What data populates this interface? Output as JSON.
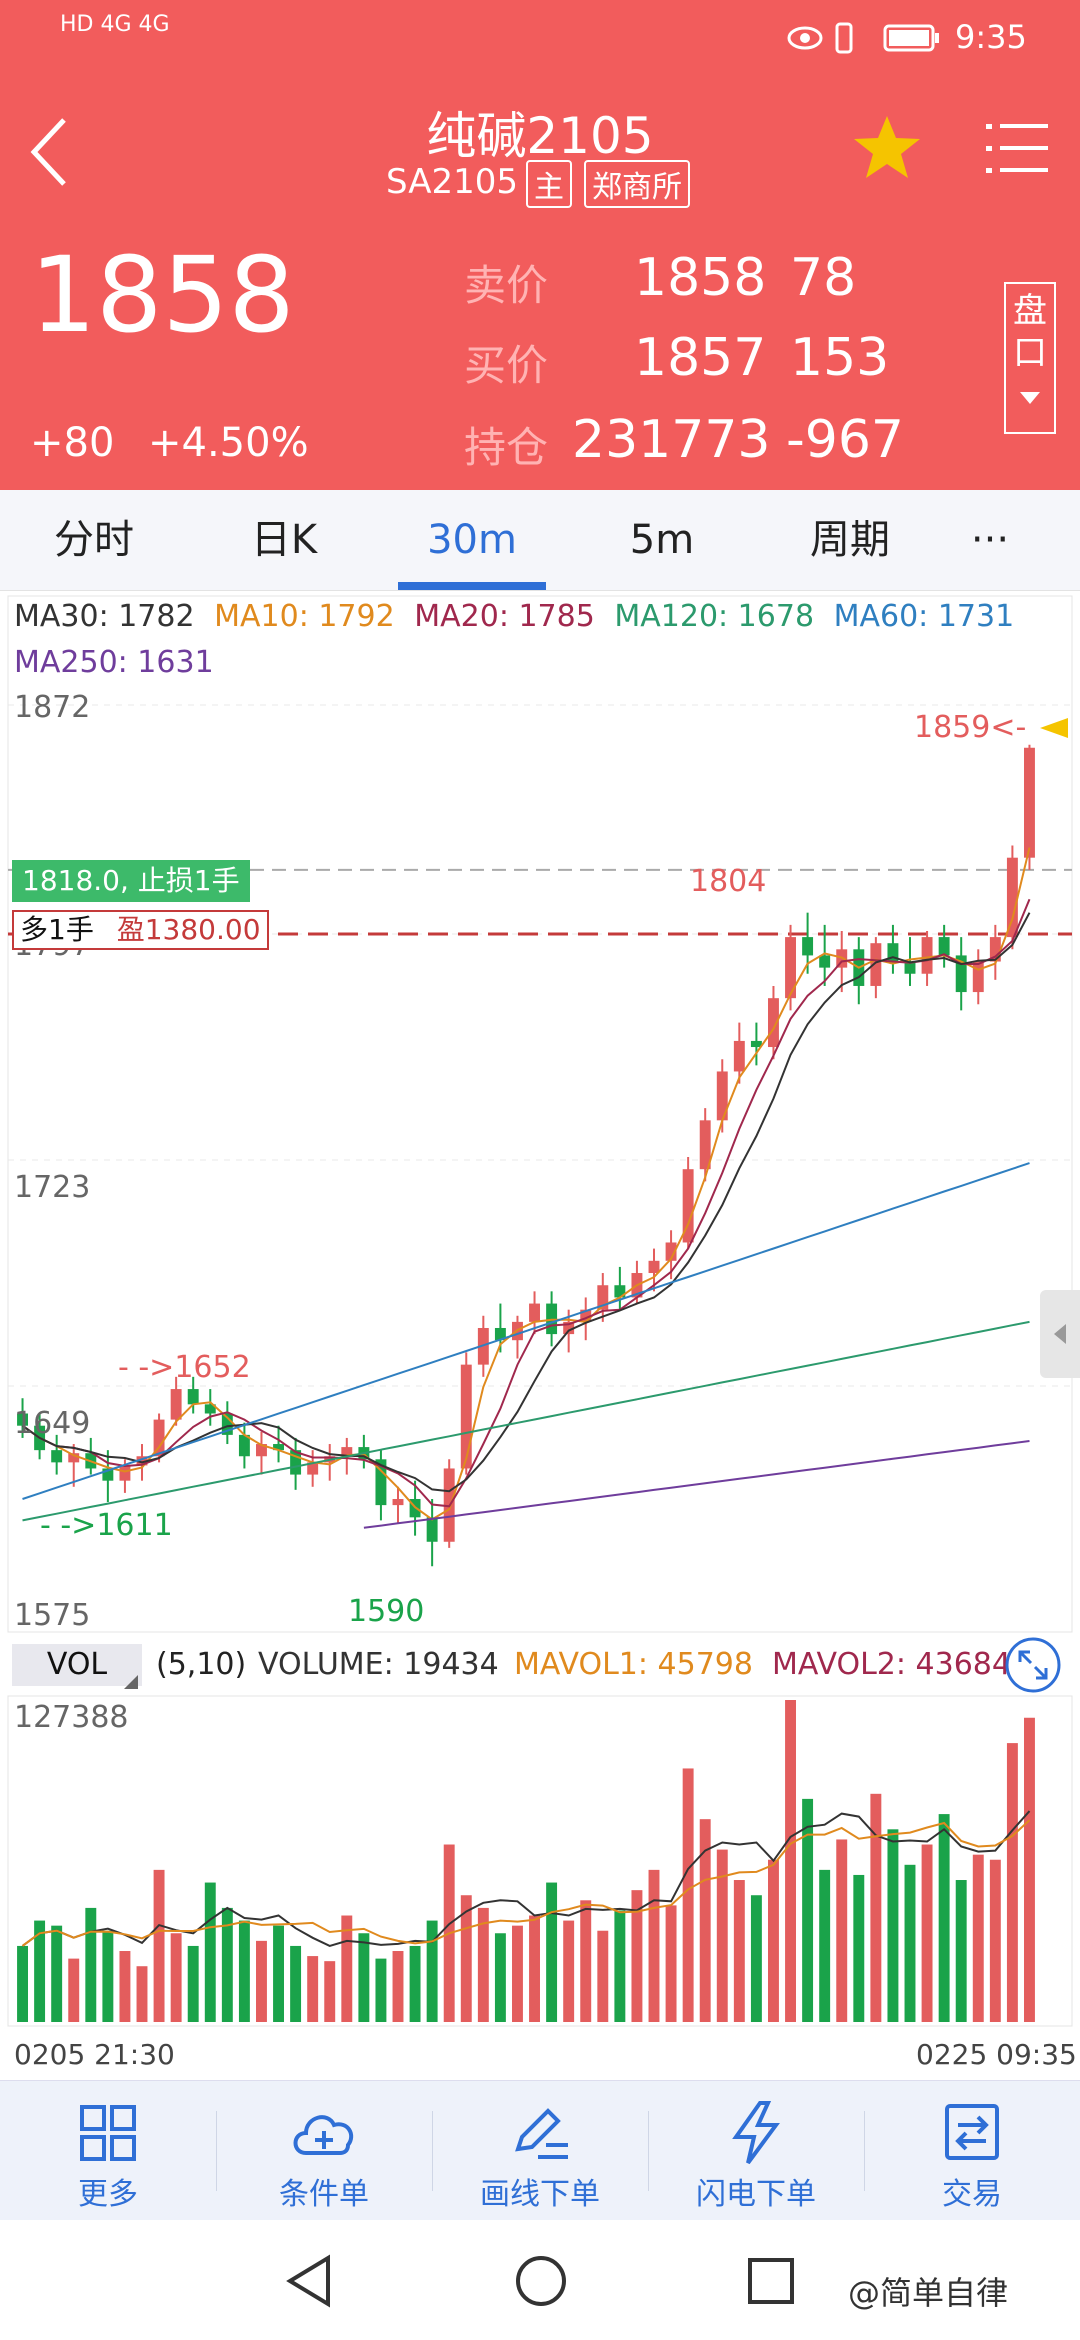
{
  "status_bar": {
    "net_left": "HD 4G 4G",
    "time": "9:35"
  },
  "header": {
    "title": "纯碱2105",
    "code": "SA2105",
    "main_badge": "主",
    "exchange_badge": "郑商所",
    "last_price": "1858",
    "change": "+80",
    "change_pct": "+4.50%",
    "ask_label": "卖价",
    "ask_price": "1858",
    "ask_vol": "78",
    "bid_label": "买价",
    "bid_price": "1857",
    "bid_vol": "153",
    "oi_label": "持仓",
    "oi_value": "231773",
    "oi_change": "-967",
    "pankou_label": "盘口"
  },
  "tabs": [
    {
      "label": "分时"
    },
    {
      "label": "日K"
    },
    {
      "label": "30m"
    },
    {
      "label": "5m"
    },
    {
      "label": "周期"
    },
    {
      "label": "···"
    }
  ],
  "active_tab": "30m",
  "ma_legend": [
    {
      "label": "MA30: 1782",
      "color": "#333333"
    },
    {
      "label": "MA10: 1792",
      "color": "#e08a1e"
    },
    {
      "label": "MA20: 1785",
      "color": "#a0284d"
    },
    {
      "label": "MA120: 1678",
      "color": "#2c9a6d"
    },
    {
      "label": "MA60: 1731",
      "color": "#2f7fc0"
    },
    {
      "label": "MA250: 1631",
      "color": "#6f3d9c"
    }
  ],
  "y_labels": {
    "top": "1872",
    "mid_high": "1797",
    "mid": "1723",
    "low_mid": "1649",
    "bottom": "1575"
  },
  "annotations": {
    "last_marker": "1859<-",
    "high_label": "1804",
    "stop_loss": "1818.0, 止损1手",
    "position": "多1手",
    "profit": "盈1380.00",
    "peak_left": "- ->1652",
    "low_left": "- ->1611",
    "low_label": "1590"
  },
  "chart_data": {
    "type": "candlestick",
    "ylim": [
      1575,
      1872
    ],
    "price_range_note": "",
    "candles": [
      [
        1640,
        1645,
        1632,
        1636
      ],
      [
        1636,
        1640,
        1625,
        1628
      ],
      [
        1628,
        1633,
        1620,
        1624
      ],
      [
        1624,
        1630,
        1616,
        1627
      ],
      [
        1627,
        1632,
        1620,
        1622
      ],
      [
        1622,
        1628,
        1611,
        1618
      ],
      [
        1618,
        1625,
        1614,
        1623
      ],
      [
        1623,
        1630,
        1618,
        1626
      ],
      [
        1626,
        1640,
        1624,
        1638
      ],
      [
        1638,
        1652,
        1636,
        1648
      ],
      [
        1648,
        1652,
        1640,
        1643
      ],
      [
        1643,
        1648,
        1636,
        1640
      ],
      [
        1640,
        1644,
        1630,
        1633
      ],
      [
        1633,
        1637,
        1622,
        1626
      ],
      [
        1626,
        1634,
        1620,
        1630
      ],
      [
        1630,
        1636,
        1624,
        1628
      ],
      [
        1628,
        1632,
        1615,
        1620
      ],
      [
        1620,
        1628,
        1616,
        1624
      ],
      [
        1624,
        1630,
        1618,
        1626
      ],
      [
        1626,
        1632,
        1620,
        1629
      ],
      [
        1629,
        1633,
        1622,
        1625
      ],
      [
        1625,
        1628,
        1605,
        1610
      ],
      [
        1610,
        1616,
        1604,
        1612
      ],
      [
        1612,
        1618,
        1600,
        1606
      ],
      [
        1606,
        1612,
        1590,
        1598
      ],
      [
        1598,
        1625,
        1596,
        1622
      ],
      [
        1622,
        1660,
        1620,
        1656
      ],
      [
        1656,
        1672,
        1652,
        1668
      ],
      [
        1668,
        1676,
        1660,
        1664
      ],
      [
        1664,
        1672,
        1658,
        1670
      ],
      [
        1670,
        1680,
        1666,
        1676
      ],
      [
        1676,
        1680,
        1662,
        1666
      ],
      [
        1666,
        1674,
        1660,
        1670
      ],
      [
        1670,
        1678,
        1664,
        1674
      ],
      [
        1674,
        1686,
        1670,
        1682
      ],
      [
        1682,
        1688,
        1674,
        1678
      ],
      [
        1678,
        1690,
        1676,
        1686
      ],
      [
        1686,
        1694,
        1680,
        1690
      ],
      [
        1690,
        1700,
        1684,
        1696
      ],
      [
        1696,
        1724,
        1694,
        1720
      ],
      [
        1720,
        1740,
        1716,
        1736
      ],
      [
        1736,
        1756,
        1732,
        1752
      ],
      [
        1752,
        1768,
        1748,
        1762
      ],
      [
        1762,
        1768,
        1754,
        1760
      ],
      [
        1760,
        1780,
        1756,
        1776
      ],
      [
        1776,
        1800,
        1772,
        1796
      ],
      [
        1796,
        1804,
        1784,
        1790
      ],
      [
        1790,
        1800,
        1780,
        1786
      ],
      [
        1786,
        1798,
        1778,
        1792
      ],
      [
        1792,
        1796,
        1774,
        1780
      ],
      [
        1780,
        1796,
        1776,
        1794
      ],
      [
        1794,
        1800,
        1784,
        1788
      ],
      [
        1788,
        1796,
        1780,
        1784
      ],
      [
        1784,
        1798,
        1780,
        1796
      ],
      [
        1796,
        1800,
        1786,
        1790
      ],
      [
        1790,
        1796,
        1772,
        1778
      ],
      [
        1778,
        1792,
        1774,
        1788
      ],
      [
        1788,
        1800,
        1782,
        1796
      ],
      [
        1796,
        1826,
        1792,
        1822
      ],
      [
        1822,
        1859,
        1818,
        1858
      ]
    ],
    "volume": {
      "ylabel_max": "127388",
      "volume_label": "VOLUME: 19434",
      "mavol1_label": "MAVOL1: 45798",
      "mavol2_label": "MAVOL2: 43684",
      "params": "(5,10)",
      "tag": "VOL",
      "bars": [
        30,
        40,
        38,
        25,
        45,
        36,
        28,
        22,
        60,
        35,
        30,
        55,
        45,
        40,
        32,
        38,
        30,
        26,
        24,
        42,
        35,
        25,
        28,
        30,
        40,
        70,
        50,
        45,
        35,
        38,
        42,
        55,
        40,
        48,
        36,
        44,
        52,
        60,
        46,
        100,
        80,
        68,
        56,
        50,
        64,
        127,
        88,
        60,
        72,
        58,
        90,
        76,
        62,
        70,
        82,
        56,
        66,
        64,
        110,
        120
      ],
      "up_color": "#e35d5d",
      "down_color": "#1aa34a"
    },
    "x_labels": [
      "0205 21:30",
      "0225 09:35"
    ],
    "lines": {
      "stop_loss_price": 1818,
      "entry_price": 1797
    }
  },
  "footer": [
    {
      "label": "更多",
      "icon": "grid-icon"
    },
    {
      "label": "条件单",
      "icon": "cloud-plus-icon"
    },
    {
      "label": "画线下单",
      "icon": "pen-line-icon"
    },
    {
      "label": "闪电下单",
      "icon": "lightning-icon"
    },
    {
      "label": "交易",
      "icon": "exchange-icon"
    }
  ],
  "watermark": "@简单自律",
  "colors": {
    "header_bg": "#f25c5c",
    "accent": "#2f6fd6",
    "stop_loss_bg": "#3dba6a",
    "up": "#e35d5d",
    "down": "#1aa34a",
    "star": "#f5c400"
  }
}
